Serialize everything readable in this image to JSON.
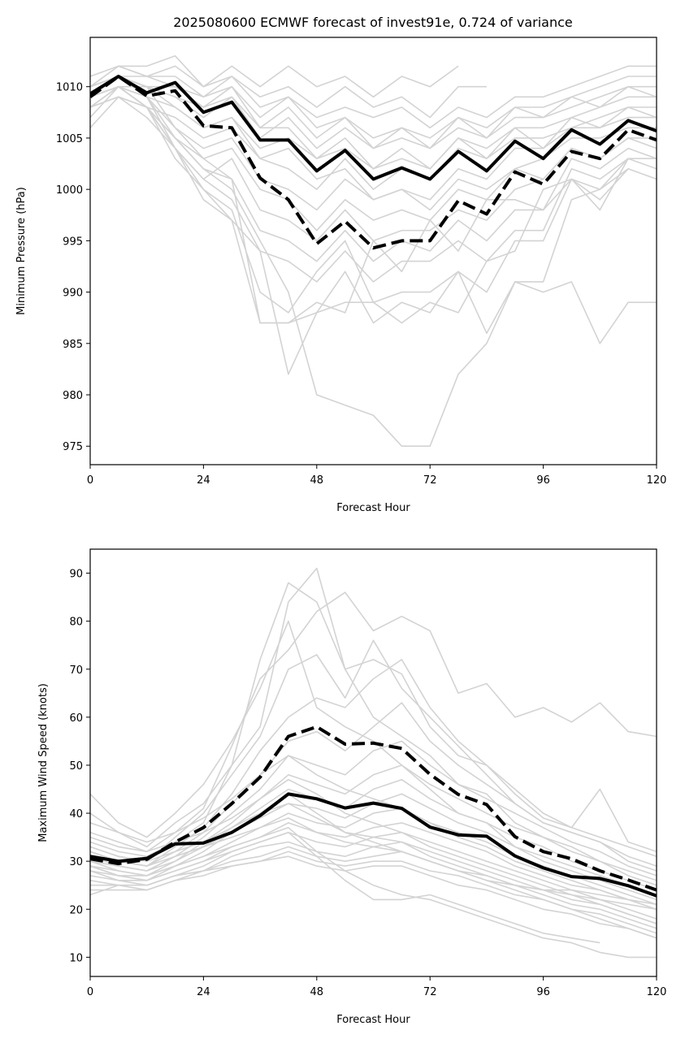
{
  "figure": {
    "title": "2025080600 ECMWF forecast of invest91e, 0.724 of variance"
  },
  "colors": {
    "ensemble": "#d3d3d3",
    "mean": "#000000",
    "max": "#000000",
    "axis": "#000000"
  },
  "chart_data": [
    {
      "type": "line",
      "title": "2025080600 ECMWF forecast of invest91e, 0.724 of variance",
      "xlabel": "Forecast Hour",
      "ylabel": "Minimum Pressure (hPa)",
      "xlim": [
        0,
        120
      ],
      "ylim": [
        973.2,
        1014.8
      ],
      "xticks": [
        0,
        24,
        48,
        72,
        96,
        120
      ],
      "yticks": [
        975,
        980,
        985,
        990,
        995,
        1000,
        1005,
        1010
      ],
      "grid": false,
      "x": [
        0,
        6,
        12,
        18,
        24,
        30,
        36,
        42,
        48,
        54,
        60,
        66,
        72,
        78,
        84,
        90,
        96,
        102,
        108,
        114,
        120
      ],
      "series": [
        {
          "style": "solid",
          "values": [
            1009.3,
            1011.0,
            1009.4,
            1010.4,
            1007.5,
            1008.5,
            1004.8,
            1004.8,
            1001.8,
            1003.8,
            1001.0,
            1002.1,
            1001.0,
            1003.7,
            1001.8,
            1004.7,
            1003.0,
            1005.8,
            1004.4,
            1006.7,
            1005.7
          ]
        },
        {
          "style": "dashed",
          "values": [
            1009.0,
            1011.0,
            1009.1,
            1009.6,
            1006.2,
            1006.0,
            1001.1,
            999.0,
            994.7,
            996.9,
            994.3,
            995.0,
            995.0,
            998.9,
            997.6,
            1001.7,
            1000.5,
            1003.7,
            1003.0,
            1005.8,
            1004.8
          ]
        }
      ],
      "ensemble": [
        [
          1010,
          1012,
          1012,
          1013,
          1010,
          1012,
          1010,
          1012,
          1010,
          1011,
          1009,
          1011,
          1010,
          1012
        ],
        [
          1011,
          1012,
          1011,
          1012,
          1010,
          1011,
          1009,
          1010,
          1008,
          1010,
          1008,
          1009,
          1007,
          1010,
          1010
        ],
        [
          1010,
          1011,
          1011,
          1010,
          1009,
          1010,
          1007,
          1009,
          1007,
          1008,
          1007,
          1008,
          1006,
          1008,
          1007,
          1009,
          1009,
          1010,
          1011,
          1012,
          1012
        ],
        [
          1009,
          1011,
          1010,
          1010,
          1008,
          1010,
          1006,
          1008,
          1005,
          1007,
          1005,
          1006,
          1005,
          1007,
          1006,
          1008,
          1008,
          1009,
          1010,
          1011,
          1011
        ],
        [
          1009,
          1010,
          1010,
          1009,
          1007,
          1009,
          1005,
          1007,
          1004,
          1006,
          1004,
          1005,
          1004,
          1006,
          1005,
          1007,
          1007,
          1008,
          1009,
          1010,
          1010
        ],
        [
          1008,
          1010,
          1009,
          1008,
          1006,
          1007,
          1004,
          1005,
          1003,
          1004,
          1002,
          1004,
          1002,
          1005,
          1004,
          1006,
          1006,
          1007,
          1008,
          1009,
          1009
        ],
        [
          1008,
          1010,
          1008,
          1007,
          1005,
          1006,
          1003,
          1002,
          1000,
          1003,
          1000,
          1002,
          1001,
          1004,
          1003,
          1005,
          1005,
          1006,
          1007,
          1008,
          1008
        ],
        [
          1007,
          1010,
          1009,
          1006,
          1004,
          1005,
          1001,
          1000,
          998,
          1001,
          999,
          1000,
          999,
          1002,
          1001,
          1004,
          1004,
          1006,
          1006,
          1007,
          1007
        ],
        [
          1006,
          1009,
          1008,
          1005,
          1003,
          1004,
          1000,
          999,
          996,
          999,
          997,
          998,
          997,
          1000,
          999,
          1002,
          1003,
          1005,
          1005,
          1006,
          1006
        ],
        [
          1008,
          1009,
          1007,
          1004,
          1001,
          1003,
          998,
          997,
          995,
          998,
          995,
          996,
          996,
          998,
          997,
          1000,
          1001,
          1004,
          1003,
          1005,
          1004
        ],
        [
          1009,
          1010,
          1008,
          1005,
          1002,
          1001,
          996,
          995,
          993,
          996,
          993,
          995,
          994,
          997,
          995,
          998,
          998,
          1003,
          1002,
          1004,
          1003
        ],
        [
          1010,
          1011,
          1009,
          1004,
          999,
          997,
          994,
          993,
          991,
          994,
          991,
          993,
          993,
          995,
          993,
          996,
          996,
          1002,
          1001,
          1003,
          1002
        ],
        [
          1009,
          1010,
          1008,
          1003,
          1000,
          998,
          990,
          988,
          992,
          995,
          989,
          990,
          990,
          992,
          990,
          995,
          995,
          1001,
          999,
          1002,
          1001
        ],
        [
          1010,
          1011,
          1010,
          1006,
          1003,
          1001,
          987,
          987,
          988,
          989,
          989,
          987,
          989,
          988,
          993,
          994,
          1000,
          1001,
          998,
          1003
        ],
        [
          1009,
          1010,
          1008,
          1004,
          1001,
          999,
          994,
          982,
          988,
          992,
          987,
          989,
          988,
          992,
          986,
          991,
          991,
          999,
          1000,
          1003,
          1003
        ],
        [
          1008,
          1010,
          1009,
          1005,
          1002,
          1000,
          995,
          990,
          980,
          979,
          978,
          975,
          975,
          982,
          985,
          991,
          990,
          991,
          985,
          989,
          989
        ],
        [
          1008,
          1009,
          1008,
          1004,
          1000,
          997,
          987,
          987,
          989,
          988,
          995,
          992,
          997,
          994,
          999,
          999,
          998,
          1001,
          1000,
          1002
        ],
        [
          1010,
          1011,
          1010,
          1008,
          1006,
          1007,
          1003,
          1004,
          1001,
          1002,
          999,
          1000,
          998,
          1001,
          1000,
          1002,
          1001,
          1004,
          1003,
          1005,
          1005
        ],
        [
          1009,
          1011,
          1010,
          1009,
          1008,
          1009,
          1006,
          1006,
          1003,
          1005,
          1002,
          1003,
          1002,
          1005,
          1003,
          1006,
          1004,
          1007,
          1006,
          1008,
          1007
        ],
        [
          1010,
          1012,
          1011,
          1011,
          1009,
          1011,
          1008,
          1009,
          1006,
          1007,
          1004,
          1006,
          1004,
          1007,
          1005,
          1008,
          1007,
          1009,
          1008,
          1010,
          1009
        ]
      ]
    },
    {
      "type": "line",
      "title": "",
      "xlabel": "Forecast Hour",
      "ylabel": "Maximum Wind Speed (knots)",
      "xlim": [
        0,
        120
      ],
      "ylim": [
        6.0,
        95.0
      ],
      "xticks": [
        0,
        24,
        48,
        72,
        96,
        120
      ],
      "yticks": [
        10,
        20,
        30,
        40,
        50,
        60,
        70,
        80,
        90
      ],
      "grid": false,
      "x": [
        0,
        6,
        12,
        18,
        24,
        30,
        36,
        42,
        48,
        54,
        60,
        66,
        72,
        78,
        84,
        90,
        96,
        102,
        108,
        114,
        120
      ],
      "series": [
        {
          "style": "solid",
          "values": [
            31.0,
            30.0,
            30.6,
            33.6,
            33.8,
            36.0,
            39.5,
            44.0,
            43.0,
            41.1,
            42.1,
            41.0,
            37.1,
            35.5,
            35.2,
            31.1,
            28.6,
            26.8,
            26.4,
            24.9,
            22.8
          ]
        },
        {
          "style": "dashed",
          "values": [
            30.5,
            29.5,
            30.4,
            34.0,
            37.0,
            42.0,
            47.5,
            56.0,
            58.0,
            54.4,
            54.6,
            53.5,
            48.1,
            43.9,
            41.8,
            35.1,
            32.0,
            30.5,
            28.0,
            26.1,
            24.0
          ]
        }
      ],
      "ensemble": [
        [
          44,
          38,
          35,
          40,
          46,
          55,
          66,
          80,
          62,
          58,
          55,
          50,
          45,
          40,
          38,
          33,
          30,
          28,
          26,
          24,
          22
        ],
        [
          40,
          36,
          33,
          38,
          42,
          50,
          58,
          84,
          91,
          70,
          60,
          56,
          52,
          46,
          44,
          38,
          35,
          33,
          30,
          28,
          26
        ],
        [
          36,
          34,
          32,
          36,
          41,
          54,
          68,
          74,
          82,
          86,
          78,
          81,
          78,
          65,
          67,
          60,
          62,
          59,
          63,
          57,
          56
        ],
        [
          34,
          32,
          31,
          34,
          38,
          50,
          72,
          88,
          84,
          70,
          72,
          69,
          58,
          52,
          50,
          44,
          39,
          37,
          35,
          33,
          31
        ],
        [
          33,
          31,
          30,
          35,
          40,
          48,
          56,
          70,
          73,
          64,
          76,
          66,
          60,
          54,
          48,
          42,
          38,
          36,
          34,
          31,
          29
        ],
        [
          32,
          30,
          29,
          33,
          37,
          44,
          53,
          60,
          64,
          62,
          68,
          72,
          62,
          55,
          50,
          45,
          40,
          37,
          45,
          34,
          32
        ],
        [
          31,
          30,
          29,
          32,
          36,
          42,
          48,
          55,
          57,
          53,
          58,
          63,
          55,
          50,
          46,
          42,
          38,
          36,
          34,
          30,
          28
        ],
        [
          30,
          29,
          28,
          31,
          35,
          40,
          45,
          52,
          50,
          48,
          53,
          55,
          50,
          46,
          43,
          40,
          37,
          34,
          32,
          29,
          27
        ],
        [
          30,
          29,
          28,
          30,
          34,
          38,
          43,
          48,
          46,
          44,
          48,
          50,
          46,
          43,
          40,
          37,
          35,
          32,
          30,
          27,
          25
        ],
        [
          29,
          28,
          27,
          30,
          33,
          37,
          41,
          45,
          43,
          41,
          45,
          47,
          43,
          40,
          38,
          35,
          33,
          30,
          28,
          26,
          24
        ],
        [
          29,
          27,
          27,
          29,
          32,
          36,
          39,
          42,
          41,
          39,
          42,
          44,
          41,
          38,
          36,
          33,
          31,
          29,
          27,
          25,
          23
        ],
        [
          28,
          27,
          26,
          29,
          31,
          34,
          37,
          40,
          38,
          37,
          40,
          41,
          38,
          36,
          34,
          31,
          29,
          27,
          25,
          23,
          21
        ],
        [
          28,
          26,
          26,
          28,
          30,
          33,
          35,
          38,
          36,
          35,
          37,
          38,
          36,
          34,
          32,
          29,
          27,
          25,
          24,
          22,
          20
        ],
        [
          27,
          26,
          25,
          27,
          29,
          32,
          34,
          36,
          34,
          33,
          35,
          36,
          34,
          32,
          30,
          28,
          26,
          24,
          22,
          20,
          18
        ],
        [
          26,
          25,
          25,
          27,
          28,
          31,
          33,
          34,
          32,
          31,
          33,
          34,
          32,
          30,
          28,
          26,
          24,
          22,
          21,
          19,
          17
        ],
        [
          25,
          25,
          24,
          26,
          28,
          30,
          31,
          33,
          31,
          30,
          31,
          32,
          30,
          28,
          27,
          25,
          23,
          21,
          20,
          18,
          16
        ],
        [
          24,
          24,
          24,
          26,
          27,
          29,
          30,
          32,
          30,
          29,
          30,
          30,
          28,
          27,
          25,
          23,
          22,
          20,
          19,
          17,
          15
        ],
        [
          23,
          25,
          25,
          27,
          28,
          29,
          30,
          31,
          29,
          28,
          29,
          29,
          27,
          25,
          24,
          22,
          20,
          19,
          17,
          16,
          14
        ],
        [
          30,
          28,
          27,
          29,
          31,
          33,
          35,
          37,
          32,
          28,
          25,
          23,
          22,
          20,
          18,
          16,
          14,
          13,
          11,
          10,
          10
        ],
        [
          29,
          27,
          26,
          28,
          30,
          32,
          34,
          36,
          31,
          26,
          22,
          22,
          23,
          21,
          19,
          17,
          15,
          14,
          13
        ],
        [
          32,
          30,
          29,
          31,
          33,
          36,
          40,
          44,
          40,
          36,
          34,
          32,
          30,
          28,
          26,
          24,
          22,
          20,
          18,
          16,
          14
        ],
        [
          35,
          33,
          32,
          34,
          36,
          39,
          43,
          47,
          44,
          40,
          38,
          36,
          33,
          31,
          29,
          27,
          25,
          23,
          21,
          19,
          17
        ],
        [
          38,
          36,
          34,
          36,
          39,
          43,
          48,
          52,
          48,
          45,
          43,
          41,
          38,
          35,
          33,
          30,
          28,
          26,
          24,
          22,
          20
        ],
        [
          33,
          31,
          30,
          32,
          34,
          37,
          40,
          42,
          39,
          36,
          35,
          34,
          31,
          29,
          27,
          25,
          24,
          23,
          22,
          21,
          20
        ],
        [
          31,
          29,
          28,
          31,
          33,
          35,
          37,
          39,
          36,
          34,
          33,
          32,
          30,
          28,
          26,
          25,
          24,
          24,
          23,
          22,
          21
        ]
      ]
    }
  ]
}
